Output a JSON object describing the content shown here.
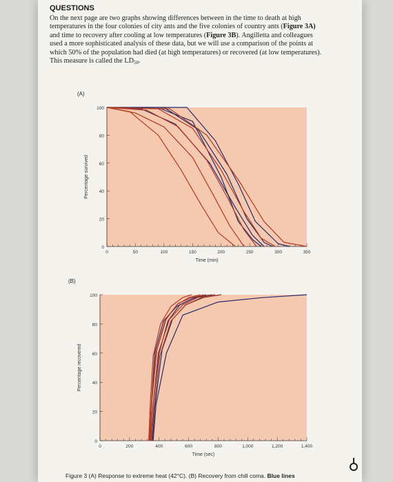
{
  "document": {
    "heading": "QUESTIONS",
    "para_lines": [
      "On the next page are two graphs showing differences between in the time to death at high",
      "temperatures in the four colonies of city ants and the five colonies of country ants (",
      "and time to recovery after cooling at low temperatures (",
      "used a more sophisticated analysis of these data, but we will use a comparison of the points at",
      "which 50% of the population had died (at high temperatures) or recovered (at low temperatures).",
      "This measure is called the LD"
    ],
    "fig3a_ref": "Figure 3A)",
    "fig3b_ref": "Figure 3B",
    "line3_tail": "). Angilletta and colleagues",
    "ld_subscript": "50",
    "caption_text": "Figure 3 (A) Response to extreme heat (42°C). (B) Recovery from chill coma.",
    "caption_bold": "Blue lines"
  },
  "chart_data": [
    {
      "type": "line",
      "panel_label": "(A)",
      "xlabel": "Time (min)",
      "ylabel": "Percentage survived",
      "xlim": [
        0,
        350
      ],
      "ylim": [
        0,
        100
      ],
      "x_ticks": [
        "0",
        "50",
        "100",
        "150",
        "200",
        "250",
        "300",
        "350"
      ],
      "y_ticks": [
        "0",
        "20",
        "40",
        "60",
        "80",
        "100"
      ],
      "background": "#f5c9b0",
      "colors": {
        "blue": "#262a6b",
        "red": "#b03a22"
      },
      "series": [
        {
          "color": "blue",
          "points": [
            [
              0,
              100
            ],
            [
              95,
              99
            ],
            [
              150,
              90
            ],
            [
              200,
              50
            ],
            [
              230,
              18
            ],
            [
              255,
              5
            ],
            [
              270,
              0
            ]
          ]
        },
        {
          "color": "blue",
          "points": [
            [
              0,
              100
            ],
            [
              60,
              99
            ],
            [
              120,
              88
            ],
            [
              180,
              60
            ],
            [
              225,
              28
            ],
            [
              255,
              8
            ],
            [
              275,
              0
            ]
          ]
        },
        {
          "color": "blue",
          "points": [
            [
              0,
              100
            ],
            [
              100,
              100
            ],
            [
              160,
              84
            ],
            [
              210,
              52
            ],
            [
              245,
              20
            ],
            [
              275,
              3
            ],
            [
              290,
              0
            ]
          ]
        },
        {
          "color": "blue",
          "points": [
            [
              0,
              100
            ],
            [
              140,
              100
            ],
            [
              190,
              76
            ],
            [
              230,
              45
            ],
            [
              260,
              18
            ],
            [
              300,
              2
            ],
            [
              320,
              0
            ]
          ]
        },
        {
          "color": "red",
          "points": [
            [
              0,
              100
            ],
            [
              40,
              97
            ],
            [
              90,
              80
            ],
            [
              130,
              55
            ],
            [
              165,
              30
            ],
            [
              195,
              10
            ],
            [
              225,
              0
            ]
          ]
        },
        {
          "color": "red",
          "points": [
            [
              0,
              100
            ],
            [
              50,
              96
            ],
            [
              100,
              86
            ],
            [
              150,
              64
            ],
            [
              185,
              38
            ],
            [
              215,
              15
            ],
            [
              240,
              0
            ]
          ]
        },
        {
          "color": "red",
          "points": [
            [
              0,
              100
            ],
            [
              70,
              98
            ],
            [
              125,
              86
            ],
            [
              175,
              62
            ],
            [
              210,
              36
            ],
            [
              240,
              12
            ],
            [
              262,
              0
            ]
          ]
        },
        {
          "color": "red",
          "points": [
            [
              0,
              100
            ],
            [
              90,
              99
            ],
            [
              150,
              85
            ],
            [
              200,
              55
            ],
            [
              240,
              25
            ],
            [
              270,
              6
            ],
            [
              295,
              0
            ]
          ]
        },
        {
          "color": "red",
          "points": [
            [
              0,
              100
            ],
            [
              110,
              99
            ],
            [
              175,
              80
            ],
            [
              230,
              48
            ],
            [
              275,
              18
            ],
            [
              310,
              3
            ],
            [
              350,
              0
            ]
          ]
        }
      ]
    },
    {
      "type": "line",
      "panel_label": "(B)",
      "xlabel": "Time (sec)",
      "ylabel": "Percentage recovered",
      "xlim": [
        0,
        1400
      ],
      "ylim": [
        0,
        100
      ],
      "x_ticks": [
        "0",
        "200",
        "400",
        "600",
        "800",
        "1,000",
        "1,200",
        "1,400"
      ],
      "y_ticks": [
        "0",
        "20",
        "40",
        "60",
        "80",
        "100"
      ],
      "background": "#f5c9b0",
      "colors": {
        "blue": "#262a6b",
        "red": "#b03a22"
      },
      "series": [
        {
          "color": "blue",
          "points": [
            [
              335,
              0
            ],
            [
              345,
              20
            ],
            [
              370,
              60
            ],
            [
              430,
              82
            ],
            [
              520,
              92
            ],
            [
              620,
              97
            ],
            [
              700,
              100
            ]
          ]
        },
        {
          "color": "blue",
          "points": [
            [
              345,
              0
            ],
            [
              360,
              25
            ],
            [
              400,
              60
            ],
            [
              460,
              82
            ],
            [
              540,
              93
            ],
            [
              640,
              98
            ],
            [
              760,
              100
            ]
          ]
        },
        {
          "color": "blue",
          "points": [
            [
              355,
              0
            ],
            [
              370,
              22
            ],
            [
              420,
              62
            ],
            [
              490,
              83
            ],
            [
              580,
              93
            ],
            [
              690,
              98
            ],
            [
              820,
              100
            ]
          ]
        },
        {
          "color": "blue",
          "points": [
            [
              360,
              0
            ],
            [
              380,
              25
            ],
            [
              450,
              60
            ],
            [
              560,
              86
            ],
            [
              800,
              95
            ],
            [
              1100,
              98
            ],
            [
              1400,
              100
            ]
          ]
        },
        {
          "color": "red",
          "points": [
            [
              330,
              0
            ],
            [
              340,
              25
            ],
            [
              360,
              58
            ],
            [
              410,
              80
            ],
            [
              480,
              92
            ],
            [
              560,
              98
            ],
            [
              620,
              100
            ]
          ]
        },
        {
          "color": "red",
          "points": [
            [
              335,
              0
            ],
            [
              348,
              25
            ],
            [
              378,
              60
            ],
            [
              440,
              82
            ],
            [
              520,
              93
            ],
            [
              600,
              98
            ],
            [
              680,
              100
            ]
          ]
        },
        {
          "color": "red",
          "points": [
            [
              340,
              0
            ],
            [
              352,
              28
            ],
            [
              385,
              62
            ],
            [
              450,
              84
            ],
            [
              530,
              94
            ],
            [
              620,
              98
            ],
            [
              720,
              100
            ]
          ]
        },
        {
          "color": "red",
          "points": [
            [
              345,
              0
            ],
            [
              360,
              25
            ],
            [
              395,
              60
            ],
            [
              470,
              83
            ],
            [
              560,
              93
            ],
            [
              660,
              98
            ],
            [
              780,
              100
            ]
          ]
        },
        {
          "color": "red",
          "points": [
            [
              350,
              0
            ],
            [
              365,
              22
            ],
            [
              405,
              58
            ],
            [
              480,
              82
            ],
            [
              580,
              93
            ],
            [
              700,
              98
            ],
            [
              820,
              100
            ]
          ]
        }
      ]
    }
  ]
}
